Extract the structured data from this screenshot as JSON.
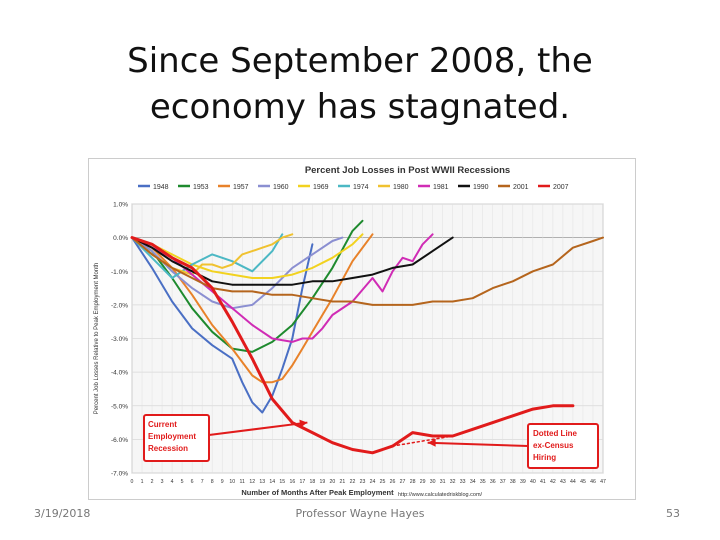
{
  "slide": {
    "title_line1": "Since September 2008, the",
    "title_line2": "economy has stagnated.",
    "footer_date": "3/19/2018",
    "footer_presenter": "Professor Wayne Hayes",
    "page_number": "53"
  },
  "chart_data": {
    "type": "line",
    "title": "Percent Job Losses in Post WWII Recessions",
    "xlabel": "Number of Months After Peak Employment",
    "ylabel": "Percent Job Losses Relative to Peak Employment Month",
    "source": "http://www.calculatedriskblog.com/",
    "xlim": [
      0,
      47
    ],
    "ylim": [
      -7,
      1
    ],
    "y_ticks": [
      "1.0%",
      "0.0%",
      "-1.0%",
      "-2.0%",
      "-3.0%",
      "-4.0%",
      "-5.0%",
      "-6.0%",
      "-7.0%"
    ],
    "x_ticks": [
      "0",
      "1",
      "2",
      "3",
      "4",
      "5",
      "6",
      "7",
      "8",
      "9",
      "10",
      "11",
      "12",
      "13",
      "14",
      "15",
      "16",
      "17",
      "18",
      "19",
      "20",
      "21",
      "22",
      "23",
      "24",
      "25",
      "26",
      "27",
      "28",
      "29",
      "30",
      "31",
      "32",
      "33",
      "34",
      "35",
      "36",
      "37",
      "38",
      "39",
      "40",
      "41",
      "42",
      "43",
      "44",
      "45",
      "46",
      "47"
    ],
    "legend_position": "top",
    "series": [
      {
        "name": "1948",
        "color": "#4a6fc4",
        "x": [
          0,
          2,
          4,
          6,
          8,
          10,
          11,
          12,
          13,
          14,
          15,
          16,
          17,
          18
        ],
        "y": [
          0,
          -0.9,
          -1.9,
          -2.7,
          -3.2,
          -3.6,
          -4.3,
          -4.9,
          -5.2,
          -4.7,
          -3.9,
          -3.0,
          -1.5,
          -0.2
        ]
      },
      {
        "name": "1953",
        "color": "#1e8a2e",
        "x": [
          0,
          2,
          4,
          6,
          8,
          10,
          12,
          14,
          16,
          18,
          20,
          22,
          23
        ],
        "y": [
          0,
          -0.4,
          -1.2,
          -2.1,
          -2.8,
          -3.3,
          -3.4,
          -3.1,
          -2.6,
          -1.8,
          -0.9,
          0.2,
          0.5
        ]
      },
      {
        "name": "1957",
        "color": "#e8822a",
        "x": [
          0,
          2,
          4,
          6,
          8,
          10,
          11,
          12,
          13,
          14,
          15,
          16,
          17,
          18,
          20,
          22,
          24
        ],
        "y": [
          0,
          -0.3,
          -0.9,
          -1.7,
          -2.6,
          -3.3,
          -3.7,
          -4.1,
          -4.3,
          -4.3,
          -4.2,
          -3.8,
          -3.3,
          -2.8,
          -1.8,
          -0.7,
          0.1
        ]
      },
      {
        "name": "1960",
        "color": "#8b8fd1",
        "x": [
          0,
          2,
          4,
          6,
          8,
          10,
          12,
          14,
          16,
          18,
          20,
          21
        ],
        "y": [
          0,
          -0.4,
          -1.0,
          -1.5,
          -1.9,
          -2.1,
          -2.0,
          -1.5,
          -0.9,
          -0.5,
          -0.1,
          0
        ]
      },
      {
        "name": "1969",
        "color": "#f2d21f",
        "x": [
          0,
          2,
          4,
          6,
          8,
          10,
          12,
          14,
          16,
          18,
          20,
          22,
          23
        ],
        "y": [
          0,
          -0.2,
          -0.5,
          -0.8,
          -1.0,
          -1.1,
          -1.2,
          -1.2,
          -1.1,
          -0.9,
          -0.6,
          -0.2,
          0.1
        ]
      },
      {
        "name": "1974",
        "color": "#4cb8c4",
        "x": [
          0,
          2,
          4,
          6,
          8,
          10,
          12,
          14,
          15
        ],
        "y": [
          0,
          -0.6,
          -1.2,
          -0.8,
          -0.5,
          -0.7,
          -1.0,
          -0.4,
          0.1
        ]
      },
      {
        "name": "1980",
        "color": "#f0c230",
        "x": [
          0,
          2,
          4,
          6,
          7,
          8,
          9,
          10,
          11,
          12,
          13,
          14,
          15,
          16
        ],
        "y": [
          0,
          -0.5,
          -0.9,
          -1.1,
          -0.8,
          -0.8,
          -0.9,
          -0.8,
          -0.5,
          -0.4,
          -0.3,
          -0.2,
          0,
          0.1
        ]
      },
      {
        "name": "1981",
        "color": "#d02cb5",
        "x": [
          0,
          4,
          8,
          12,
          14,
          16,
          17,
          18,
          19,
          20,
          22,
          24,
          25,
          26,
          27,
          28,
          29,
          30
        ],
        "y": [
          0,
          -0.6,
          -1.6,
          -2.6,
          -3.0,
          -3.1,
          -3.0,
          -3.0,
          -2.7,
          -2.3,
          -1.9,
          -1.2,
          -1.6,
          -1.0,
          -0.6,
          -0.7,
          -0.2,
          0.1
        ]
      },
      {
        "name": "1990",
        "color": "#111111",
        "x": [
          0,
          2,
          4,
          6,
          8,
          10,
          12,
          14,
          16,
          18,
          20,
          22,
          24,
          26,
          28,
          30,
          32
        ],
        "y": [
          0,
          -0.3,
          -0.7,
          -1.0,
          -1.3,
          -1.4,
          -1.4,
          -1.4,
          -1.4,
          -1.3,
          -1.3,
          -1.2,
          -1.1,
          -0.9,
          -0.8,
          -0.4,
          0
        ]
      },
      {
        "name": "2001",
        "color": "#b5651d",
        "x": [
          0,
          2,
          4,
          6,
          8,
          10,
          12,
          14,
          16,
          18,
          20,
          22,
          24,
          26,
          28,
          30,
          32,
          34,
          36,
          38,
          40,
          42,
          44,
          46,
          47
        ],
        "y": [
          0,
          -0.5,
          -0.9,
          -1.2,
          -1.5,
          -1.6,
          -1.6,
          -1.7,
          -1.7,
          -1.8,
          -1.9,
          -1.9,
          -2.0,
          -2.0,
          -2.0,
          -1.9,
          -1.9,
          -1.8,
          -1.5,
          -1.3,
          -1.0,
          -0.8,
          -0.3,
          -0.1,
          0
        ]
      },
      {
        "name": "2007",
        "color": "#e11b1b",
        "x": [
          0,
          2,
          4,
          6,
          8,
          10,
          12,
          14,
          16,
          18,
          20,
          22,
          24,
          25,
          26,
          28,
          30,
          32,
          34,
          36,
          38,
          40,
          42,
          43,
          44
        ],
        "y": [
          0,
          -0.2,
          -0.6,
          -0.9,
          -1.5,
          -2.5,
          -3.6,
          -4.8,
          -5.5,
          -5.8,
          -6.1,
          -6.3,
          -6.4,
          -6.3,
          -6.2,
          -5.8,
          -5.9,
          -5.9,
          -5.7,
          -5.5,
          -5.3,
          -5.1,
          -5.0,
          -5.0,
          -5.0
        ]
      },
      {
        "name": "",
        "color": "#e11b1b",
        "style": "dotted",
        "x": [
          26,
          28,
          30,
          32
        ],
        "y": [
          -6.2,
          -6.1,
          -6.0,
          -5.9
        ]
      }
    ],
    "annotations": [
      {
        "lines": [
          "Current",
          "Employment",
          "Recession"
        ],
        "color": "#e11b1b"
      },
      {
        "lines": [
          "Dotted Line",
          "ex-Census",
          "Hiring"
        ],
        "color": "#e11b1b"
      }
    ]
  }
}
